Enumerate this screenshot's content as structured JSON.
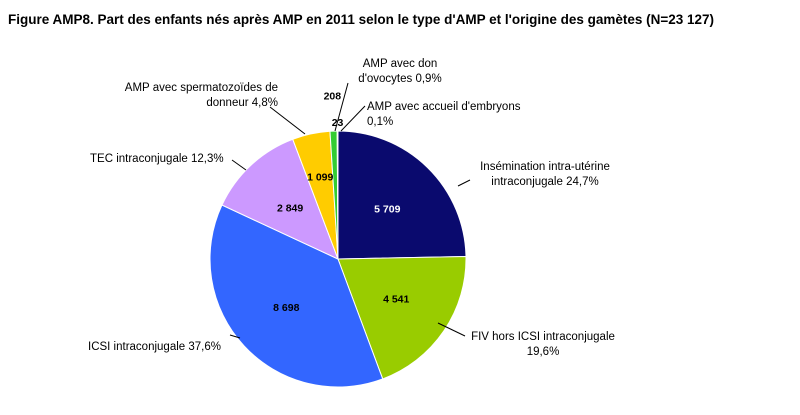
{
  "chart_data": {
    "type": "pie",
    "title": "Figure AMP8. Part des enfants nés après AMP en 2011 selon le type d'AMP et l'origine des gamètes (N=23 127)",
    "slices": [
      {
        "value": 5709,
        "value_label": "5 709",
        "label_lines": [
          "Insémination intra-utérine",
          "intraconjugale 24,7%"
        ],
        "color": "#0a0a6e"
      },
      {
        "value": 4541,
        "value_label": "4 541",
        "label_lines": [
          "FIV hors ICSI intraconjugale",
          "19,6%"
        ],
        "color": "#99cc00"
      },
      {
        "value": 8698,
        "value_label": "8 698",
        "label_lines": [
          "ICSI intraconjugale 37,6%"
        ],
        "color": "#3366ff"
      },
      {
        "value": 2849,
        "value_label": "2 849",
        "label_lines": [
          "TEC intraconjugale 12,3%"
        ],
        "color": "#cc99ff"
      },
      {
        "value": 1099,
        "value_label": "1 099",
        "label_lines": [
          "AMP avec spermatozoïdes de",
          "donneur 4,8%"
        ],
        "color": "#ffcc00"
      },
      {
        "value": 208,
        "value_label": "208",
        "label_lines": [
          "AMP avec don",
          "d'ovocytes 0,9%"
        ],
        "color": "#33cc33"
      },
      {
        "value": 23,
        "value_label": "23",
        "label_lines": [
          "AMP avec accueil d'embryons",
          "0,1%"
        ],
        "color": "#ff00ff"
      }
    ]
  }
}
